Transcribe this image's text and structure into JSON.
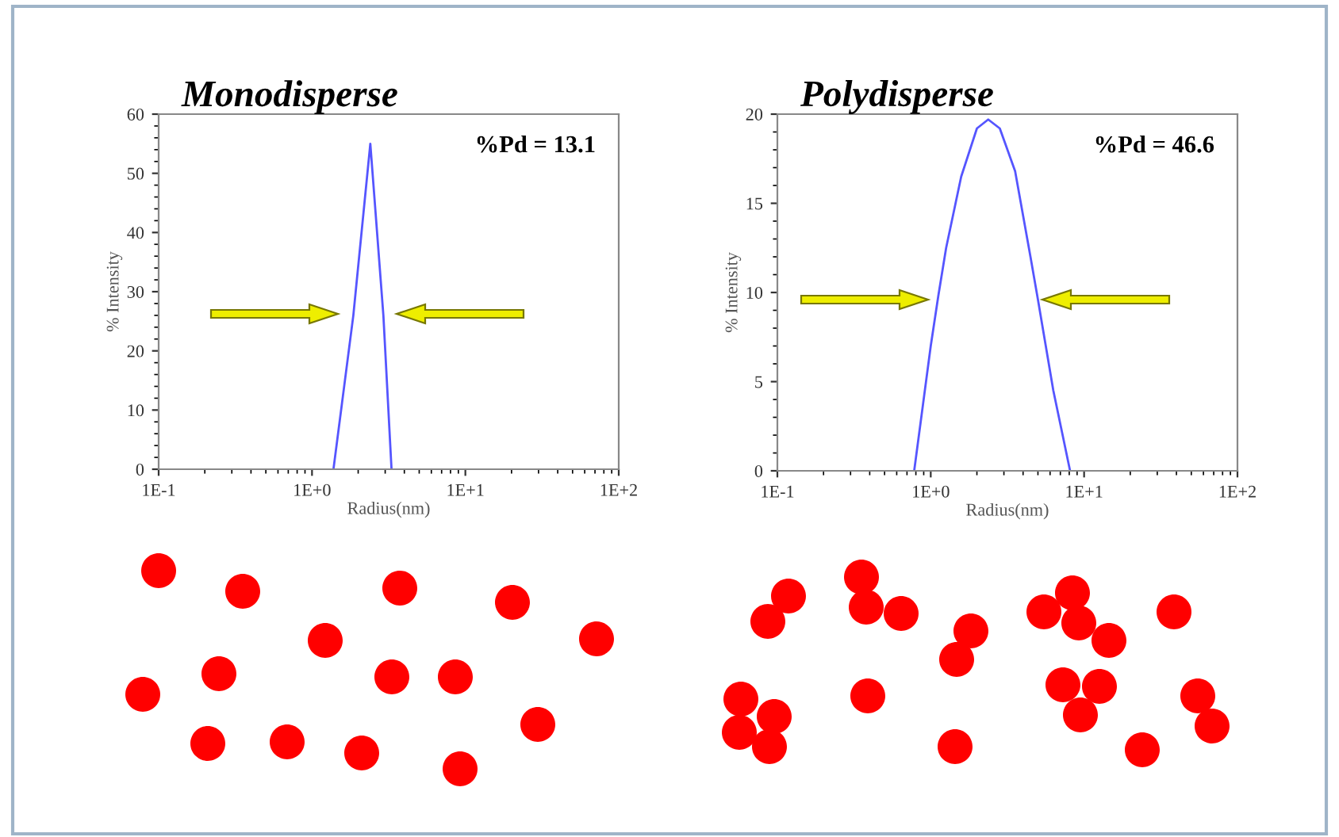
{
  "chart_data": [
    {
      "type": "line",
      "title": "Monodisperse",
      "xlabel": "Radius(nm)",
      "ylabel": "% Intensity",
      "log": "x",
      "x": [
        1.38,
        1.86,
        2.4,
        2.92,
        3.3
      ],
      "series": [
        {
          "color": "#5555ff",
          "values": [
            0,
            26,
            55,
            26,
            0
          ]
        }
      ],
      "xlim": [
        0.1,
        100
      ],
      "xticks": [
        {
          "value": 0.1,
          "label": "1E-1"
        },
        {
          "value": 1,
          "label": "1E+0"
        },
        {
          "value": 10,
          "label": "1E+1"
        },
        {
          "value": 100,
          "label": "1E+2"
        }
      ],
      "ylim": [
        0,
        60
      ],
      "yticks": [
        0,
        10,
        20,
        30,
        40,
        50,
        60
      ],
      "grid": false,
      "marker": "none",
      "line_style": "solid",
      "annotations": [
        "%Pd = 13.1"
      ]
    },
    {
      "type": "line",
      "title": "Polydisperse",
      "xlabel": "Radius(nm)",
      "ylabel": "% Intensity",
      "log": "x",
      "x": [
        0.78,
        1.0,
        1.12,
        1.26,
        1.58,
        2.0,
        2.37,
        2.82,
        3.55,
        4.47,
        5.0,
        6.3,
        8.1
      ],
      "series": [
        {
          "color": "#5555ff",
          "values": [
            0,
            7,
            9.8,
            12.5,
            16.5,
            19.2,
            19.7,
            19.2,
            16.8,
            12,
            9.6,
            4.5,
            0
          ]
        }
      ],
      "xlim": [
        0.1,
        100
      ],
      "xticks": [
        {
          "value": 0.1,
          "label": "1E-1"
        },
        {
          "value": 1,
          "label": "1E+0"
        },
        {
          "value": 10,
          "label": "1E+1"
        },
        {
          "value": 100,
          "label": "1E+2"
        }
      ],
      "ylim": [
        0,
        20
      ],
      "yticks": [
        0,
        5,
        10,
        15,
        20
      ],
      "grid": false,
      "marker": "none",
      "line_style": "solid",
      "annotations": [
        "%Pd = 46.6"
      ]
    }
  ]
}
